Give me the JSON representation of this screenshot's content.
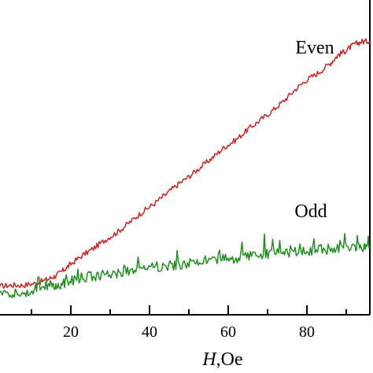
{
  "chart_data": {
    "type": "line",
    "title": "",
    "xlabel": "",
    "xlabel_var": "H",
    "xlabel_unit": ",Oe",
    "ylabel": "",
    "xlim": [
      2,
      96
    ],
    "ylim": [
      0,
      100
    ],
    "x_ticks": [
      20,
      40,
      60,
      80
    ],
    "grid": false,
    "legend": "inline labels",
    "series": [
      {
        "name": "Even",
        "color": "#d42020",
        "x": [
          2,
          5,
          8,
          11,
          14,
          16,
          18,
          20,
          23,
          26,
          29,
          32,
          35,
          38,
          41,
          44,
          47,
          50,
          53,
          56,
          59,
          62,
          65,
          68,
          71,
          74,
          77,
          80,
          83,
          86,
          88,
          90,
          92,
          94,
          96
        ],
        "y": [
          9.1,
          9.4,
          9.4,
          10.0,
          11.2,
          12.3,
          14.0,
          16.1,
          18.9,
          21.3,
          24.0,
          26.4,
          29.4,
          32.5,
          35.1,
          38.1,
          41.2,
          43.9,
          46.9,
          49.9,
          53.2,
          55.6,
          58.9,
          61.7,
          64.6,
          67.8,
          71.5,
          74.7,
          76.9,
          80.0,
          82.6,
          84.0,
          85.9,
          86.8,
          87.0
        ]
      },
      {
        "name": "Odd",
        "color": "#1f8f1f",
        "x": [
          2,
          5,
          8,
          11,
          14,
          16,
          18,
          20,
          23,
          26,
          29,
          32,
          35,
          38,
          41,
          44,
          47,
          50,
          53,
          56,
          59,
          62,
          65,
          68,
          71,
          74,
          77,
          80,
          83,
          86,
          89,
          92,
          94,
          96
        ],
        "y": [
          7.7,
          7.0,
          6.8,
          8.2,
          9.4,
          9.4,
          9.8,
          10.7,
          11.9,
          12.3,
          12.8,
          13.3,
          14.0,
          14.7,
          15.1,
          15.6,
          15.8,
          16.3,
          16.8,
          17.5,
          18.2,
          17.9,
          18.6,
          18.9,
          19.4,
          19.6,
          19.9,
          20.3,
          20.8,
          20.8,
          21.3,
          21.5,
          21.5,
          21.3
        ]
      }
    ],
    "annotations": [
      {
        "text": "Even",
        "x": 82,
        "y": 83
      },
      {
        "text": "Odd",
        "x": 81,
        "y": 31
      }
    ]
  }
}
